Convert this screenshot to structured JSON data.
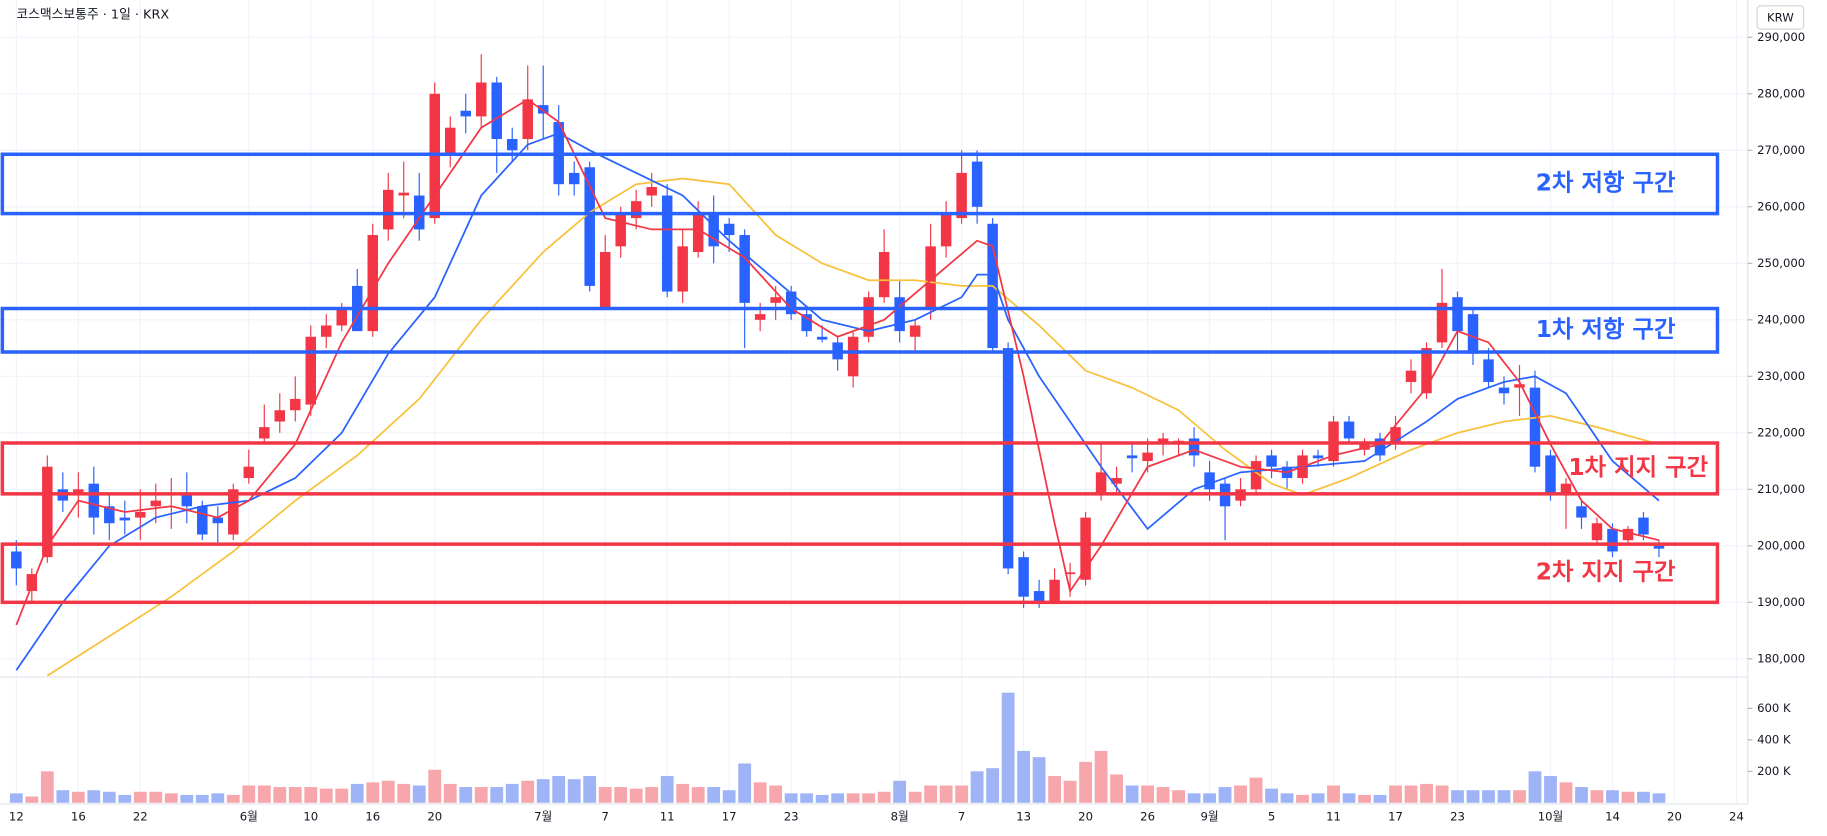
{
  "chart_data": {
    "type": "candlestick",
    "title": "코스맥스보통주 · 1일 · KRX",
    "currency": "KRW",
    "categories": [
      "12",
      null,
      null,
      null,
      "16",
      null,
      null,
      null,
      "22",
      null,
      null,
      null,
      null,
      null,
      null,
      "6월",
      null,
      null,
      null,
      "10",
      null,
      null,
      null,
      "16",
      null,
      null,
      null,
      "20",
      null,
      null,
      null,
      null,
      null,
      null,
      "7월",
      null,
      null,
      null,
      "7",
      null,
      null,
      null,
      "11",
      null,
      null,
      null,
      "17",
      null,
      null,
      null,
      "23",
      null,
      null,
      null,
      null,
      null,
      null,
      "8월",
      null,
      null,
      null,
      "7",
      null,
      null,
      null,
      "13",
      null,
      null,
      null,
      "20",
      null,
      null,
      null,
      "26",
      null,
      null,
      null,
      "9월",
      null,
      null,
      null,
      "5",
      null,
      null,
      null,
      "11",
      null,
      null,
      null,
      "17",
      null,
      null,
      null,
      "23",
      null,
      null,
      null,
      null,
      null,
      "10월",
      null,
      null,
      null,
      "14",
      null,
      null,
      null,
      "20",
      null,
      null,
      null,
      "24"
    ],
    "open": [
      199000,
      192000,
      198000,
      210000,
      209000,
      211000,
      207000,
      205000,
      205000,
      207000,
      209000,
      209000,
      207000,
      205000,
      202000,
      212000,
      219000,
      222000,
      224000,
      225000,
      237000,
      239000,
      246000,
      238000,
      256000,
      262000,
      262000,
      258000,
      269000,
      277000,
      276000,
      282000,
      272000,
      272000,
      278000,
      275000,
      266000,
      267000,
      242000,
      253000,
      258000,
      262000,
      262000,
      245000,
      252000,
      259000,
      257000,
      255000,
      240000,
      243000,
      245000,
      241000,
      237000,
      236000,
      230000,
      237000,
      244000,
      244000,
      237000,
      242000,
      253000,
      258000,
      268000,
      257000,
      235000,
      198000,
      192000,
      190000,
      195000,
      194000,
      209000,
      211000,
      216000,
      215000,
      218000,
      218000,
      219000,
      213000,
      211000,
      208000,
      210000,
      216000,
      214000,
      212000,
      216000,
      215000,
      222000,
      217000,
      219000,
      218000,
      229000,
      227000,
      236000,
      244000,
      241000,
      233000,
      228000,
      228000,
      228000,
      216000,
      209000,
      207000,
      201000,
      203000,
      201000,
      205000,
      200000,
      null,
      null,
      null,
      null,
      null
    ],
    "high": [
      201000,
      196000,
      216000,
      213000,
      213000,
      214000,
      209000,
      208000,
      210000,
      211000,
      212000,
      213000,
      208000,
      207000,
      211000,
      217000,
      225000,
      227000,
      230000,
      239000,
      241000,
      243000,
      249000,
      257000,
      266000,
      268000,
      266000,
      282000,
      276000,
      280000,
      287000,
      283000,
      274000,
      285000,
      285000,
      278000,
      268000,
      268000,
      255000,
      260000,
      263000,
      266000,
      264000,
      256000,
      261000,
      262000,
      258000,
      256000,
      243000,
      246000,
      246000,
      242000,
      239000,
      237000,
      238000,
      245000,
      256000,
      247000,
      240000,
      257000,
      261000,
      270000,
      270000,
      258000,
      236000,
      199000,
      194000,
      196000,
      197000,
      206000,
      218000,
      214000,
      218000,
      219000,
      220000,
      219000,
      221000,
      215000,
      212000,
      212000,
      216000,
      217000,
      215000,
      217000,
      217000,
      223000,
      223000,
      219000,
      220000,
      223000,
      233000,
      236000,
      249000,
      245000,
      242000,
      235000,
      230000,
      232000,
      231000,
      217000,
      212000,
      208000,
      205000,
      204000,
      203500,
      206000,
      201000,
      null,
      null,
      null,
      null,
      null
    ],
    "low": [
      193000,
      190000,
      197000,
      206000,
      205000,
      202000,
      201000,
      202000,
      201000,
      204000,
      203000,
      204000,
      201000,
      200000,
      201000,
      211000,
      218000,
      220000,
      222000,
      223000,
      235000,
      238000,
      238000,
      237000,
      254000,
      258000,
      254000,
      257000,
      267000,
      273000,
      274000,
      266000,
      268000,
      270000,
      272000,
      262000,
      262000,
      245000,
      242000,
      251000,
      256000,
      260000,
      244000,
      243000,
      251000,
      250000,
      252000,
      235000,
      238000,
      240000,
      240000,
      237000,
      236000,
      231000,
      228000,
      236000,
      243000,
      236000,
      234000,
      240000,
      251000,
      257000,
      257000,
      234000,
      195000,
      189000,
      189000,
      190000,
      191000,
      193000,
      208000,
      209000,
      213000,
      213000,
      216000,
      216000,
      214000,
      208000,
      201000,
      207000,
      209000,
      212000,
      210000,
      211000,
      214000,
      214000,
      218000,
      216000,
      215000,
      217000,
      227000,
      226000,
      235000,
      234000,
      232000,
      228000,
      225000,
      223000,
      213000,
      208000,
      203000,
      203000,
      200000,
      198000,
      200000,
      201000,
      198000,
      null,
      null,
      null,
      null,
      null
    ],
    "close": [
      196000,
      195000,
      214000,
      208000,
      210000,
      205000,
      204000,
      204500,
      206000,
      208000,
      209300,
      207000,
      202000,
      204000,
      210000,
      214000,
      221000,
      224000,
      226000,
      237000,
      239000,
      242000,
      238000,
      255000,
      263000,
      262500,
      256000,
      280000,
      274000,
      276000,
      282000,
      272000,
      270000,
      279000,
      276500,
      264000,
      264000,
      246000,
      252000,
      259000,
      261000,
      263500,
      245000,
      253000,
      259000,
      253000,
      255000,
      243000,
      241000,
      244000,
      241000,
      238000,
      236500,
      233000,
      237000,
      244000,
      252000,
      238000,
      239000,
      253000,
      259000,
      266000,
      260000,
      235000,
      196000,
      191000,
      190000,
      194000,
      195300,
      205000,
      213000,
      212000,
      215500,
      216500,
      219000,
      218600,
      216000,
      210000,
      207000,
      210000,
      215000,
      214000,
      212000,
      216000,
      215500,
      222000,
      219000,
      218000,
      216000,
      221000,
      231000,
      235000,
      243000,
      238000,
      234000,
      229000,
      227000,
      228600,
      214000,
      209000,
      211000,
      205000,
      204000,
      199000,
      203000,
      202000,
      199500,
      null,
      null,
      null,
      null,
      null
    ],
    "up_color": "#f23645",
    "down_color": "#2962ff",
    "ylim": [
      177000,
      296600
    ],
    "yticks": [
      {
        "value": 180000,
        "label": "180,000"
      },
      {
        "value": 190000,
        "label": "190,000"
      },
      {
        "value": 200000,
        "label": "200,000"
      },
      {
        "value": 210000,
        "label": "210,000"
      },
      {
        "value": 220000,
        "label": "220,000"
      },
      {
        "value": 230000,
        "label": "230,000"
      },
      {
        "value": 240000,
        "label": "240,000"
      },
      {
        "value": 250000,
        "label": "250,000"
      },
      {
        "value": 260000,
        "label": "260,000"
      },
      {
        "value": 270000,
        "label": "270,000"
      },
      {
        "value": 280000,
        "label": "280,000"
      },
      {
        "value": 290000,
        "label": "290,000"
      }
    ],
    "grid": true,
    "moving_averages": [
      {
        "color": "#f7c13a",
        "x": [
          2,
          6,
          10,
          14,
          18,
          22,
          26,
          30,
          34,
          37,
          40,
          43,
          46,
          49,
          52,
          55,
          58,
          61,
          63,
          66,
          69,
          72,
          75,
          78,
          81,
          83,
          86,
          90,
          93,
          96,
          99,
          102,
          106
        ],
        "values": [
          177000,
          184000,
          191000,
          199000,
          208000,
          216000,
          226000,
          240000,
          252000,
          259000,
          264000,
          265000,
          264000,
          255000,
          250000,
          247000,
          247000,
          246000,
          246000,
          239000,
          231000,
          228000,
          224000,
          217000,
          211000,
          209000,
          212000,
          217000,
          220000,
          222000,
          223000,
          221000,
          218000
        ]
      },
      {
        "color": "#2962ff",
        "x": [
          0,
          3,
          6,
          9,
          12,
          15,
          18,
          21,
          24,
          27,
          30,
          33,
          35,
          37,
          40,
          43,
          46,
          49,
          52,
          55,
          58,
          61,
          62,
          63,
          64,
          66,
          70,
          73,
          76,
          79,
          83,
          87,
          91,
          93,
          96,
          98,
          100,
          103,
          106
        ],
        "values": [
          178000,
          190000,
          200000,
          205000,
          207000,
          208000,
          212000,
          220000,
          234000,
          244000,
          262000,
          271000,
          273000,
          270000,
          266000,
          262000,
          254000,
          247000,
          240000,
          238000,
          240000,
          244000,
          248000,
          248000,
          240000,
          230000,
          214000,
          203000,
          210000,
          213000,
          214000,
          215000,
          222000,
          226000,
          229000,
          230000,
          227000,
          215000,
          208000
        ]
      },
      {
        "color": "#f23645",
        "x": [
          0,
          2,
          4,
          7,
          10,
          13,
          15,
          18,
          21,
          24,
          27,
          30,
          33,
          35,
          38,
          41,
          44,
          47,
          50,
          53,
          56,
          59,
          62,
          63,
          65,
          67,
          68,
          70,
          73,
          76,
          79,
          82,
          85,
          88,
          91,
          93,
          95,
          97,
          99,
          101,
          103,
          106
        ],
        "values": [
          186000,
          200000,
          208000,
          206000,
          207000,
          205000,
          208000,
          218000,
          236000,
          250000,
          262000,
          274000,
          279000,
          275000,
          258000,
          256000,
          256000,
          251000,
          242000,
          237000,
          240000,
          247000,
          254000,
          253000,
          230000,
          204000,
          192000,
          200000,
          214000,
          217000,
          214000,
          213000,
          216000,
          218000,
          228000,
          238000,
          236000,
          229000,
          218000,
          208000,
          203000,
          201000
        ]
      }
    ],
    "zones": [
      {
        "label": "2차 저항 구간",
        "top": 269300,
        "bottom": 258800,
        "color": "#2962ff"
      },
      {
        "label": "1차 저항 구간",
        "top": 242000,
        "bottom": 234300,
        "color": "#2962ff"
      },
      {
        "label": "1차 지지 구간",
        "top": 218200,
        "bottom": 209200,
        "color": "#f23645"
      },
      {
        "label": "2차 지지 구간",
        "top": 200300,
        "bottom": 190000,
        "color": "#f23645"
      }
    ],
    "volume": {
      "values": [
        60000,
        40000,
        200000,
        80000,
        70000,
        80000,
        70000,
        50000,
        70000,
        70000,
        60000,
        50000,
        50000,
        60000,
        50000,
        110000,
        110000,
        100000,
        100000,
        100000,
        90000,
        90000,
        120000,
        130000,
        140000,
        120000,
        110000,
        210000,
        120000,
        100000,
        100000,
        100000,
        120000,
        140000,
        150000,
        170000,
        150000,
        170000,
        100000,
        100000,
        90000,
        100000,
        170000,
        120000,
        100000,
        100000,
        80000,
        250000,
        130000,
        110000,
        60000,
        60000,
        50000,
        60000,
        60000,
        60000,
        70000,
        140000,
        70000,
        110000,
        110000,
        110000,
        200000,
        220000,
        700000,
        330000,
        290000,
        170000,
        140000,
        260000,
        330000,
        180000,
        110000,
        110000,
        100000,
        80000,
        60000,
        60000,
        100000,
        110000,
        160000,
        90000,
        60000,
        50000,
        60000,
        110000,
        60000,
        50000,
        50000,
        110000,
        110000,
        120000,
        110000,
        80000,
        80000,
        80000,
        80000,
        80000,
        200000,
        170000,
        130000,
        100000,
        80000,
        80000,
        70000,
        70000,
        60000,
        null,
        null,
        null,
        null,
        null
      ],
      "up_color": "#f7a6ab",
      "down_color": "#9fb4f7",
      "ylim": [
        0,
        785000
      ],
      "yticks": [
        {
          "value": 200000,
          "label": "200 K"
        },
        {
          "value": 400000,
          "label": "400 K"
        },
        {
          "value": 600000,
          "label": "600 K"
        }
      ]
    }
  }
}
